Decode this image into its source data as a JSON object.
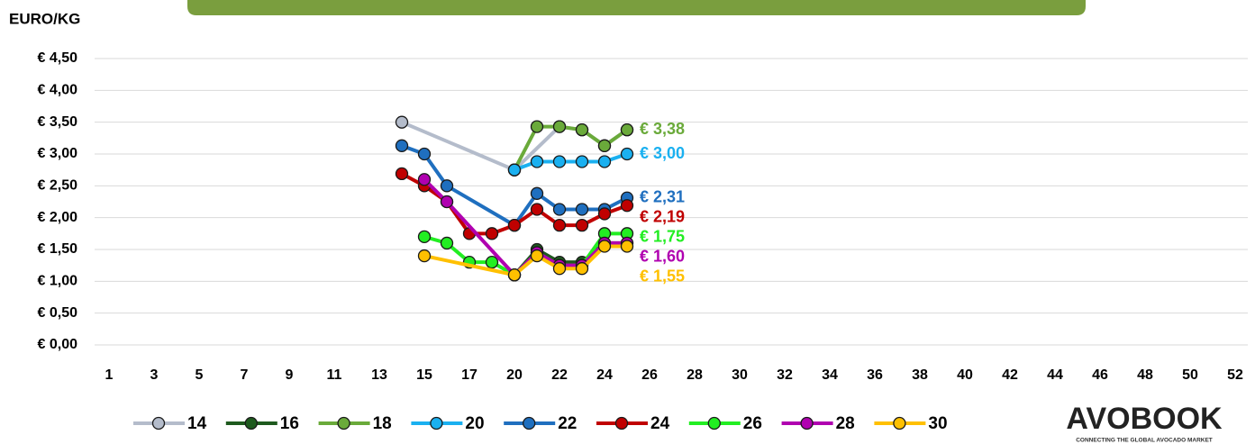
{
  "chart_data": {
    "type": "line",
    "y_label": "EURO/KG",
    "categories": [
      "1",
      null,
      "3",
      null,
      "5",
      null,
      "7",
      null,
      "9",
      null,
      "11",
      null,
      "13",
      null,
      "15",
      null,
      "17",
      null,
      "20",
      null,
      "22",
      null,
      "24",
      null,
      "26",
      null,
      "28",
      null,
      "30",
      null,
      "32",
      null,
      "34",
      null,
      "36",
      null,
      "38",
      null,
      "40",
      null,
      "42",
      null,
      "44",
      null,
      "46",
      null,
      "48",
      null,
      "50",
      null,
      "52"
    ],
    "ylim": [
      0,
      4.5
    ],
    "yticks": [
      {
        "value": 0,
        "label": "€ 0,00"
      },
      {
        "value": 0.5,
        "label": "€ 0,50"
      },
      {
        "value": 1,
        "label": "€ 1,00"
      },
      {
        "value": 1.5,
        "label": "€ 1,50"
      },
      {
        "value": 2,
        "label": "€ 2,00"
      },
      {
        "value": 2.5,
        "label": "€ 2,50"
      },
      {
        "value": 3,
        "label": "€ 3,00"
      },
      {
        "value": 3.5,
        "label": "€ 3,50"
      },
      {
        "value": 4,
        "label": "€ 4,00"
      },
      {
        "value": 4.5,
        "label": "€ 4,50"
      }
    ],
    "grid": true,
    "connect_gaps": true,
    "legend": "bottom",
    "series": [
      {
        "name": "14",
        "color": "#b4bccb",
        "values": [
          null,
          null,
          null,
          null,
          null,
          null,
          null,
          null,
          null,
          null,
          null,
          null,
          null,
          3.5,
          null,
          null,
          null,
          null,
          2.75,
          null,
          3.43,
          3.38,
          3.13,
          3.38,
          null,
          null,
          null,
          null,
          null,
          null,
          null,
          null,
          null,
          null,
          null,
          null,
          null,
          null,
          null,
          null,
          null,
          null,
          null,
          null,
          null,
          null,
          null,
          null,
          null,
          null,
          null
        ]
      },
      {
        "name": "16",
        "color": "#1e5a1e",
        "values": [
          null,
          null,
          null,
          null,
          null,
          null,
          null,
          null,
          null,
          null,
          null,
          null,
          null,
          null,
          null,
          null,
          null,
          null,
          1.1,
          1.5,
          1.3,
          1.3,
          1.6,
          1.6,
          null,
          null,
          null,
          null,
          null,
          null,
          null,
          null,
          null,
          null,
          null,
          null,
          null,
          null,
          null,
          null,
          null,
          null,
          null,
          null,
          null,
          null,
          null,
          null,
          null,
          null,
          null
        ]
      },
      {
        "name": "18",
        "color": "#6aaa3a",
        "values": [
          null,
          null,
          null,
          null,
          null,
          null,
          null,
          null,
          null,
          null,
          null,
          null,
          null,
          null,
          null,
          null,
          null,
          null,
          2.75,
          3.43,
          3.43,
          3.38,
          3.13,
          3.38,
          null,
          null,
          null,
          null,
          null,
          null,
          null,
          null,
          null,
          null,
          null,
          null,
          null,
          null,
          null,
          null,
          null,
          null,
          null,
          null,
          null,
          null,
          null,
          null,
          null,
          null,
          null
        ],
        "value_labels": [
          null,
          null,
          null,
          null,
          null,
          null,
          null,
          null,
          null,
          null,
          null,
          null,
          null,
          null,
          null,
          null,
          null,
          null,
          null,
          null,
          null,
          null,
          null,
          "€ 3,38",
          null,
          null,
          null,
          null,
          null,
          null,
          null,
          null,
          null,
          null,
          null,
          null,
          null,
          null,
          null,
          null,
          null,
          null,
          null,
          null,
          null,
          null,
          null,
          null,
          null,
          null,
          null
        ]
      },
      {
        "name": "20",
        "color": "#1ab0f0",
        "values": [
          null,
          null,
          null,
          null,
          null,
          null,
          null,
          null,
          null,
          null,
          null,
          null,
          null,
          null,
          null,
          null,
          null,
          null,
          2.75,
          2.88,
          2.88,
          2.88,
          2.88,
          3.0,
          null,
          null,
          null,
          null,
          null,
          null,
          null,
          null,
          null,
          null,
          null,
          null,
          null,
          null,
          null,
          null,
          null,
          null,
          null,
          null,
          null,
          null,
          null,
          null,
          null,
          null,
          null
        ],
        "value_labels": [
          null,
          null,
          null,
          null,
          null,
          null,
          null,
          null,
          null,
          null,
          null,
          null,
          null,
          null,
          null,
          null,
          null,
          null,
          null,
          null,
          null,
          null,
          null,
          "€ 3,00",
          null,
          null,
          null,
          null,
          null,
          null,
          null,
          null,
          null,
          null,
          null,
          null,
          null,
          null,
          null,
          null,
          null,
          null,
          null,
          null,
          null,
          null,
          null,
          null,
          null,
          null,
          null
        ]
      },
      {
        "name": "22",
        "color": "#1f6fbf",
        "values": [
          null,
          null,
          null,
          null,
          null,
          null,
          null,
          null,
          null,
          null,
          null,
          null,
          null,
          3.13,
          3.0,
          2.5,
          null,
          null,
          1.88,
          2.38,
          2.13,
          2.13,
          2.13,
          2.31,
          null,
          null,
          null,
          null,
          null,
          null,
          null,
          null,
          null,
          null,
          null,
          null,
          null,
          null,
          null,
          null,
          null,
          null,
          null,
          null,
          null,
          null,
          null,
          null,
          null,
          null,
          null
        ],
        "value_labels": [
          null,
          null,
          null,
          null,
          null,
          null,
          null,
          null,
          null,
          null,
          null,
          null,
          null,
          null,
          null,
          null,
          null,
          null,
          null,
          null,
          null,
          null,
          null,
          "€ 2,31",
          null,
          null,
          null,
          null,
          null,
          null,
          null,
          null,
          null,
          null,
          null,
          null,
          null,
          null,
          null,
          null,
          null,
          null,
          null,
          null,
          null,
          null,
          null,
          null,
          null,
          null,
          null
        ]
      },
      {
        "name": "24",
        "color": "#c00000",
        "values": [
          null,
          null,
          null,
          null,
          null,
          null,
          null,
          null,
          null,
          null,
          null,
          null,
          null,
          2.69,
          2.5,
          2.25,
          1.75,
          1.75,
          1.88,
          2.13,
          1.88,
          1.88,
          2.06,
          2.19,
          null,
          null,
          null,
          null,
          null,
          null,
          null,
          null,
          null,
          null,
          null,
          null,
          null,
          null,
          null,
          null,
          null,
          null,
          null,
          null,
          null,
          null,
          null,
          null,
          null,
          null,
          null
        ],
        "value_labels": [
          null,
          null,
          null,
          null,
          null,
          null,
          null,
          null,
          null,
          null,
          null,
          null,
          null,
          null,
          null,
          null,
          null,
          null,
          null,
          null,
          null,
          null,
          null,
          "€ 2,19",
          null,
          null,
          null,
          null,
          null,
          null,
          null,
          null,
          null,
          null,
          null,
          null,
          null,
          null,
          null,
          null,
          null,
          null,
          null,
          null,
          null,
          null,
          null,
          null,
          null,
          null,
          null
        ]
      },
      {
        "name": "26",
        "color": "#22ee22",
        "values": [
          null,
          null,
          null,
          null,
          null,
          null,
          null,
          null,
          null,
          null,
          null,
          null,
          null,
          null,
          1.7,
          1.6,
          1.3,
          1.3,
          1.1,
          1.45,
          1.25,
          1.25,
          1.75,
          1.75,
          null,
          null,
          null,
          null,
          null,
          null,
          null,
          null,
          null,
          null,
          null,
          null,
          null,
          null,
          null,
          null,
          null,
          null,
          null,
          null,
          null,
          null,
          null,
          null,
          null,
          null,
          null
        ],
        "value_labels": [
          null,
          null,
          null,
          null,
          null,
          null,
          null,
          null,
          null,
          null,
          null,
          null,
          null,
          null,
          null,
          null,
          null,
          null,
          null,
          null,
          null,
          null,
          null,
          "€ 1,75",
          null,
          null,
          null,
          null,
          null,
          null,
          null,
          null,
          null,
          null,
          null,
          null,
          null,
          null,
          null,
          null,
          null,
          null,
          null,
          null,
          null,
          null,
          null,
          null,
          null,
          null,
          null
        ]
      },
      {
        "name": "28",
        "color": "#b000b0",
        "values": [
          null,
          null,
          null,
          null,
          null,
          null,
          null,
          null,
          null,
          null,
          null,
          null,
          null,
          null,
          2.6,
          2.25,
          null,
          null,
          1.1,
          1.45,
          1.25,
          1.25,
          1.6,
          1.6,
          null,
          null,
          null,
          null,
          null,
          null,
          null,
          null,
          null,
          null,
          null,
          null,
          null,
          null,
          null,
          null,
          null,
          null,
          null,
          null,
          null,
          null,
          null,
          null,
          null,
          null,
          null
        ],
        "value_labels": [
          null,
          null,
          null,
          null,
          null,
          null,
          null,
          null,
          null,
          null,
          null,
          null,
          null,
          null,
          null,
          null,
          null,
          null,
          null,
          null,
          null,
          null,
          null,
          "€ 1,60",
          null,
          null,
          null,
          null,
          null,
          null,
          null,
          null,
          null,
          null,
          null,
          null,
          null,
          null,
          null,
          null,
          null,
          null,
          null,
          null,
          null,
          null,
          null,
          null,
          null,
          null,
          null
        ]
      },
      {
        "name": "30",
        "color": "#ffc000",
        "values": [
          null,
          null,
          null,
          null,
          null,
          null,
          null,
          null,
          null,
          null,
          null,
          null,
          null,
          null,
          1.4,
          null,
          null,
          null,
          1.1,
          1.4,
          1.2,
          1.2,
          1.55,
          1.55,
          null,
          null,
          null,
          null,
          null,
          null,
          null,
          null,
          null,
          null,
          null,
          null,
          null,
          null,
          null,
          null,
          null,
          null,
          null,
          null,
          null,
          null,
          null,
          null,
          null,
          null,
          null
        ],
        "value_labels": [
          null,
          null,
          null,
          null,
          null,
          null,
          null,
          null,
          null,
          null,
          null,
          null,
          null,
          null,
          null,
          null,
          null,
          null,
          null,
          null,
          null,
          null,
          null,
          "€ 1,55",
          null,
          null,
          null,
          null,
          null,
          null,
          null,
          null,
          null,
          null,
          null,
          null,
          null,
          null,
          null,
          null,
          null,
          null,
          null,
          null,
          null,
          null,
          null,
          null,
          null,
          null,
          null
        ]
      }
    ]
  },
  "logo": {
    "name": "AVOBOOK",
    "tagline": "CONNECTING THE GLOBAL AVOCADO MARKET"
  }
}
